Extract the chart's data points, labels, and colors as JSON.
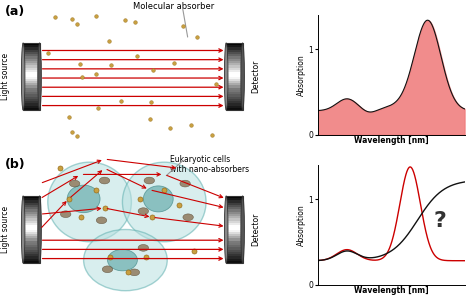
{
  "fig_width": 4.74,
  "fig_height": 3.06,
  "dpi": 100,
  "background_color": "#ffffff",
  "panel_a_label": "(a)",
  "panel_b_label": "(b)",
  "mol_absorber_label": "Molecular absorber",
  "eukaryotic_label": "Eukaryotic cells\nwith nano-absorbers",
  "detector_label": "Detector",
  "light_source_label": "Light source",
  "xlabel": "Wavelength [nm]",
  "ylabel": "Absorption",
  "yticks": [
    0,
    1
  ],
  "arrow_color": "#cc0000",
  "dot_color": "#c8a040",
  "spectrum_fill_color": "#f08080",
  "spectrum_line_color": "#111111",
  "question_mark_fontsize": 16,
  "annotation_line_color": "#999999",
  "cell_color": "#b8e0e0",
  "cell_edge": "#60b0b0"
}
